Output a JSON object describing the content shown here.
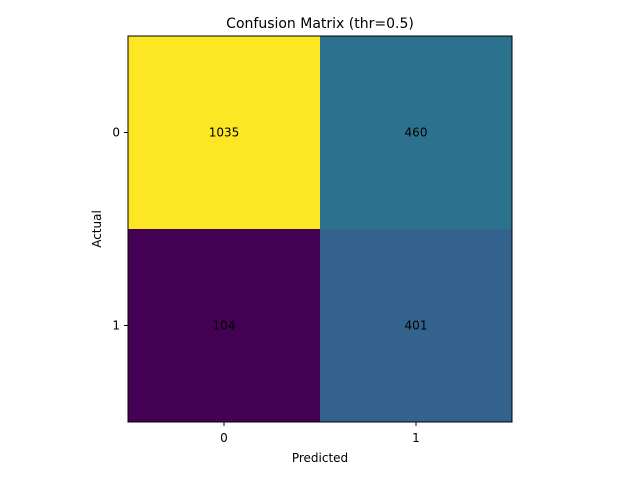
{
  "chart_data": {
    "type": "heatmap",
    "title": "Confusion Matrix (thr=0.5)",
    "xlabel": "Predicted",
    "ylabel": "Actual",
    "x_categories": [
      "0",
      "1"
    ],
    "y_categories": [
      "0",
      "1"
    ],
    "values": [
      [
        1035,
        460
      ],
      [
        104,
        401
      ]
    ],
    "colormap": "viridis",
    "cell_colors": [
      [
        "#fde725",
        "#2c728e"
      ],
      [
        "#440154",
        "#33638d"
      ]
    ],
    "grid": false
  }
}
